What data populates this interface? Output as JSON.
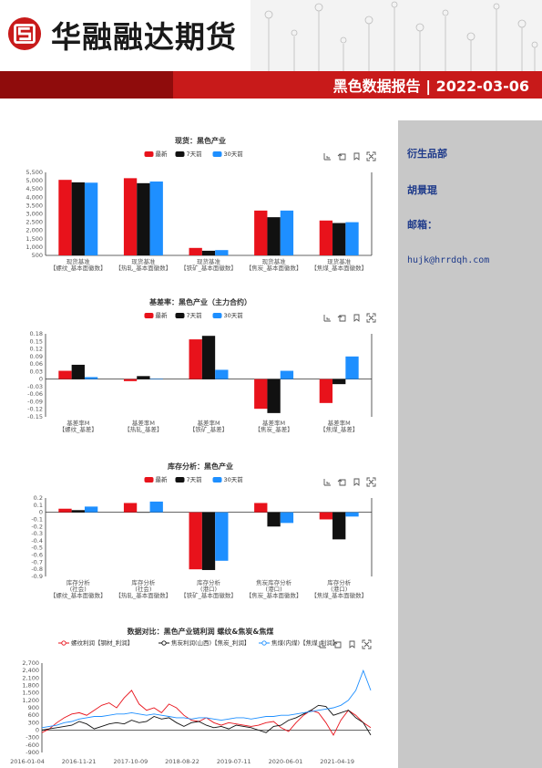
{
  "brand": {
    "name": "华融融达期货",
    "logo_letter": "S"
  },
  "report": {
    "title": "黑色数据报告 | 2022-03-06"
  },
  "sidebar": {
    "section": "衍生品部",
    "author": "胡景琨",
    "email_label": "邮箱：",
    "email": "hujk@hrrdqh.com"
  },
  "toolbox_icons": [
    "zoom-icon",
    "restore-icon",
    "save-icon",
    "fullscreen-icon"
  ],
  "chart_data": [
    {
      "type": "bar",
      "title": "现货：黑色产业",
      "legend": [
        "最新",
        "7天前",
        "30天前"
      ],
      "colors": [
        "#e8121b",
        "#111111",
        "#1e8fff"
      ],
      "categories": [
        [
          "现货基准",
          "【螺纹_基本面徽数】"
        ],
        [
          "现货基准",
          "【热轧_基本面徽数】"
        ],
        [
          "现货基准",
          "【铁矿_基本面徽数】"
        ],
        [
          "现货基准",
          "【焦炭_基本面徽数】"
        ],
        [
          "现货基准",
          "【焦煤_基本面徽数】"
        ]
      ],
      "series": [
        {
          "name": "最新",
          "values": [
            5050,
            5150,
            950,
            3200,
            2600
          ]
        },
        {
          "name": "7天前",
          "values": [
            4900,
            4850,
            780,
            2800,
            2450
          ]
        },
        {
          "name": "30天前",
          "values": [
            4880,
            4950,
            820,
            3200,
            2500
          ]
        }
      ],
      "yticks": [
        "500",
        "1,000",
        "1,500",
        "2,000",
        "2,500",
        "3,000",
        "3,500",
        "4,000",
        "4,500",
        "5,000",
        "5,500"
      ],
      "ylim": [
        500,
        5500
      ]
    },
    {
      "type": "bar",
      "title": "基差率：黑色产业（主力合约）",
      "legend": [
        "最新",
        "7天前",
        "30天前"
      ],
      "colors": [
        "#e8121b",
        "#111111",
        "#1e8fff"
      ],
      "categories": [
        [
          "基差率M",
          "【螺纹_基差】"
        ],
        [
          "基差率M",
          "【热轧_基差】"
        ],
        [
          "基差率M",
          "【铁矿_基差】"
        ],
        [
          "基差率M",
          "【焦炭_基差】"
        ],
        [
          "基差率M",
          "【焦煤_基差】"
        ]
      ],
      "series": [
        {
          "name": "最新",
          "values": [
            0.033,
            -0.008,
            0.158,
            -0.118,
            -0.095
          ]
        },
        {
          "name": "7天前",
          "values": [
            0.057,
            0.012,
            0.172,
            -0.135,
            -0.02
          ]
        },
        {
          "name": "30天前",
          "values": [
            0.008,
            0.002,
            0.037,
            0.033,
            0.09
          ]
        }
      ],
      "yticks": [
        "-0.15",
        "-0.12",
        "-0.09",
        "-0.06",
        "-0.03",
        "0",
        "0.03",
        "0.06",
        "0.09",
        "0.12",
        "0.15",
        "0.18"
      ],
      "ylim": [
        -0.15,
        0.18
      ]
    },
    {
      "type": "bar",
      "title": "库存分析：黑色产业",
      "legend": [
        "最新",
        "7天前",
        "30天前"
      ],
      "colors": [
        "#e8121b",
        "#111111",
        "#1e8fff"
      ],
      "categories": [
        [
          "库存分析",
          "(社会)",
          "【螺纹_基本面徽数】"
        ],
        [
          "库存分析",
          "(社会)",
          "【热轧_基本面徽数】"
        ],
        [
          "库存分析",
          "(港口)",
          "【铁矿_基本面徽数】"
        ],
        [
          "焦炭库存分析",
          "(港口)",
          "【焦炭_基本面徽数】"
        ],
        [
          "库存分析",
          "(港口)",
          "【焦煤_基本面徽数】"
        ]
      ],
      "series": [
        {
          "name": "最新",
          "values": [
            0.05,
            0.13,
            -0.8,
            0.13,
            -0.1
          ]
        },
        {
          "name": "7天前",
          "values": [
            0.03,
            0.0,
            -0.81,
            -0.2,
            -0.38
          ]
        },
        {
          "name": "30天前",
          "values": [
            0.08,
            0.15,
            -0.68,
            -0.15,
            -0.06
          ]
        }
      ],
      "yticks": [
        "-0.9",
        "-0.8",
        "-0.7",
        "-0.6",
        "-0.5",
        "-0.4",
        "-0.3",
        "-0.2",
        "-0.1",
        "0",
        "0.1",
        "0.2"
      ],
      "ylim": [
        -0.9,
        0.2
      ]
    },
    {
      "type": "line",
      "title": "数据对比：黑色产业链利润 螺纹&焦炭&焦煤",
      "legend": [
        "螺纹利润【钢材_利润】",
        "焦炭利润(山西)【焦炭_利润】",
        "焦煤(内煤)【焦煤_利润】"
      ],
      "colors": [
        "#e8121b",
        "#111111",
        "#1e8fff"
      ],
      "xticks": [
        "2016-01-04",
        "2016-11-21",
        "2017-10-09",
        "2018-08-22",
        "2019-07-11",
        "2020-06-01",
        "2021-04-19"
      ],
      "yticks": [
        "-900",
        "-600",
        "-300",
        "0",
        "300",
        "600",
        "900",
        "1,200",
        "1,500",
        "1,800",
        "2,100",
        "2,400",
        "2,700"
      ],
      "ylim": [
        -900,
        2700
      ],
      "series": [
        {
          "name": "螺纹利润【钢材_利润】",
          "values": [
            -100,
            50,
            300,
            500,
            650,
            700,
            600,
            800,
            1000,
            1100,
            900,
            1300,
            1600,
            1050,
            800,
            900,
            700,
            1050,
            900,
            600,
            400,
            350,
            500,
            300,
            200,
            300,
            250,
            200,
            150,
            200,
            300,
            350,
            100,
            -50,
            300,
            600,
            800,
            700,
            300,
            -200,
            400,
            800,
            600,
            300,
            100
          ]
        },
        {
          "name": "焦炭利润(山西)【焦炭_利润】",
          "values": [
            0,
            50,
            100,
            150,
            200,
            350,
            250,
            50,
            150,
            250,
            300,
            250,
            400,
            300,
            350,
            550,
            450,
            500,
            300,
            150,
            300,
            350,
            200,
            100,
            150,
            50,
            200,
            150,
            100,
            0,
            -100,
            150,
            200,
            400,
            500,
            650,
            800,
            1000,
            950,
            600,
            700,
            800,
            500,
            300,
            -200
          ]
        },
        {
          "name": "焦煤(内煤)【焦煤_利润】",
          "values": [
            100,
            150,
            200,
            300,
            350,
            450,
            500,
            550,
            550,
            600,
            650,
            650,
            700,
            650,
            600,
            650,
            600,
            550,
            500,
            500,
            450,
            500,
            500,
            450,
            400,
            450,
            500,
            500,
            450,
            500,
            550,
            550,
            600,
            600,
            650,
            700,
            750,
            800,
            850,
            900,
            1000,
            1200,
            1600,
            2400,
            1600
          ]
        }
      ]
    }
  ]
}
